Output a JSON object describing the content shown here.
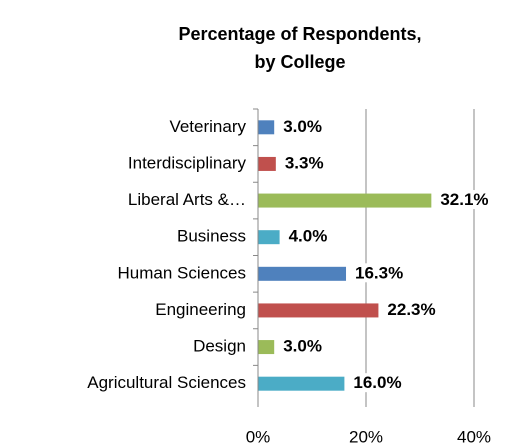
{
  "chart_data": {
    "type": "hbar",
    "title": [
      "Percentage of Respondents,",
      "by College"
    ],
    "categories": [
      "Veterinary",
      "Interdisciplinary",
      "Liberal Arts &…",
      "Business",
      "Human Sciences",
      "Engineering",
      "Design",
      "Agricultural Sciences"
    ],
    "values": [
      3.0,
      3.3,
      32.1,
      4.0,
      16.3,
      22.3,
      3.0,
      16.0
    ],
    "value_labels": [
      "3.0%",
      "3.3%",
      "32.1%",
      "4.0%",
      "16.3%",
      "22.3%",
      "3.0%",
      "16.0%"
    ],
    "colors": [
      "#4f81bd",
      "#c0504d",
      "#9bbb59",
      "#4bacc6",
      "#4f81bd",
      "#c0504d",
      "#9bbb59",
      "#4bacc6"
    ],
    "xlim": [
      0,
      40
    ],
    "xticks": [
      {
        "value": 0,
        "label": "0%"
      },
      {
        "value": 20,
        "label": "20%"
      },
      {
        "value": 40,
        "label": "40%"
      }
    ],
    "grid": true
  }
}
